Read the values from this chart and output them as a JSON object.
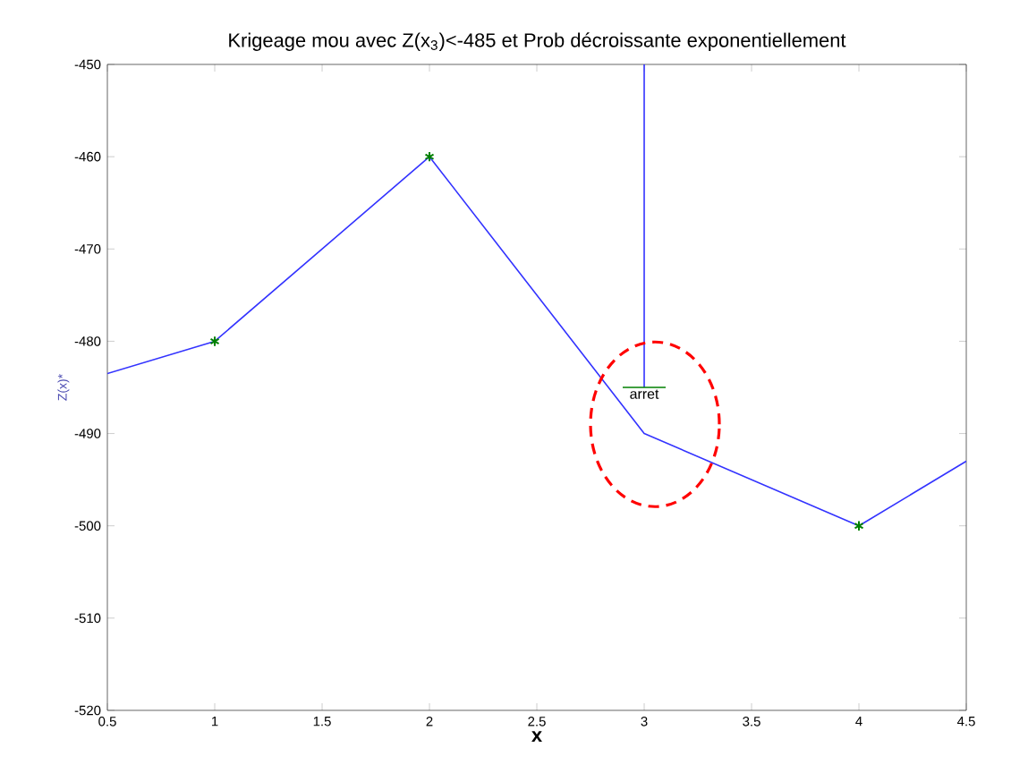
{
  "chart_data": {
    "type": "line",
    "title": "Krigeage mou avec Z(x$_{3}$)<-485 et Prob décroissante exponentiellement",
    "xlabel": "x",
    "ylabel": "Z(x)*",
    "xlim": [
      0.5,
      4.5
    ],
    "xticks": [
      0.5,
      1,
      1.5,
      2,
      2.5,
      3,
      3.5,
      4,
      4.5
    ],
    "ylim": [
      -520,
      -450
    ],
    "yticks": [
      -520,
      -510,
      -500,
      -490,
      -480,
      -470,
      -460,
      -450
    ],
    "grid": false,
    "line_style": "solid",
    "series": [
      {
        "marker": "none",
        "color": "#3333ff",
        "x": [
          0.5,
          1,
          2,
          3,
          4,
          4.5
        ],
        "values": [
          -483.5,
          -480,
          -460,
          -490,
          -500,
          -493
        ]
      },
      {
        "marker": "none",
        "color": "#3333ff",
        "x": [
          3,
          3
        ],
        "values": [
          -450,
          -485
        ]
      },
      {
        "marker": "none",
        "color": "#008000",
        "x": [
          2.9,
          3.1
        ],
        "values": [
          -485,
          -485
        ]
      },
      {
        "type": "scatter",
        "marker": "cross",
        "color": "#008000",
        "x": [
          1,
          2,
          4
        ],
        "values": [
          -480,
          -460,
          -500
        ]
      }
    ],
    "annotations": [
      {
        "text": "arret",
        "x": 3,
        "y": -485
      }
    ]
  }
}
